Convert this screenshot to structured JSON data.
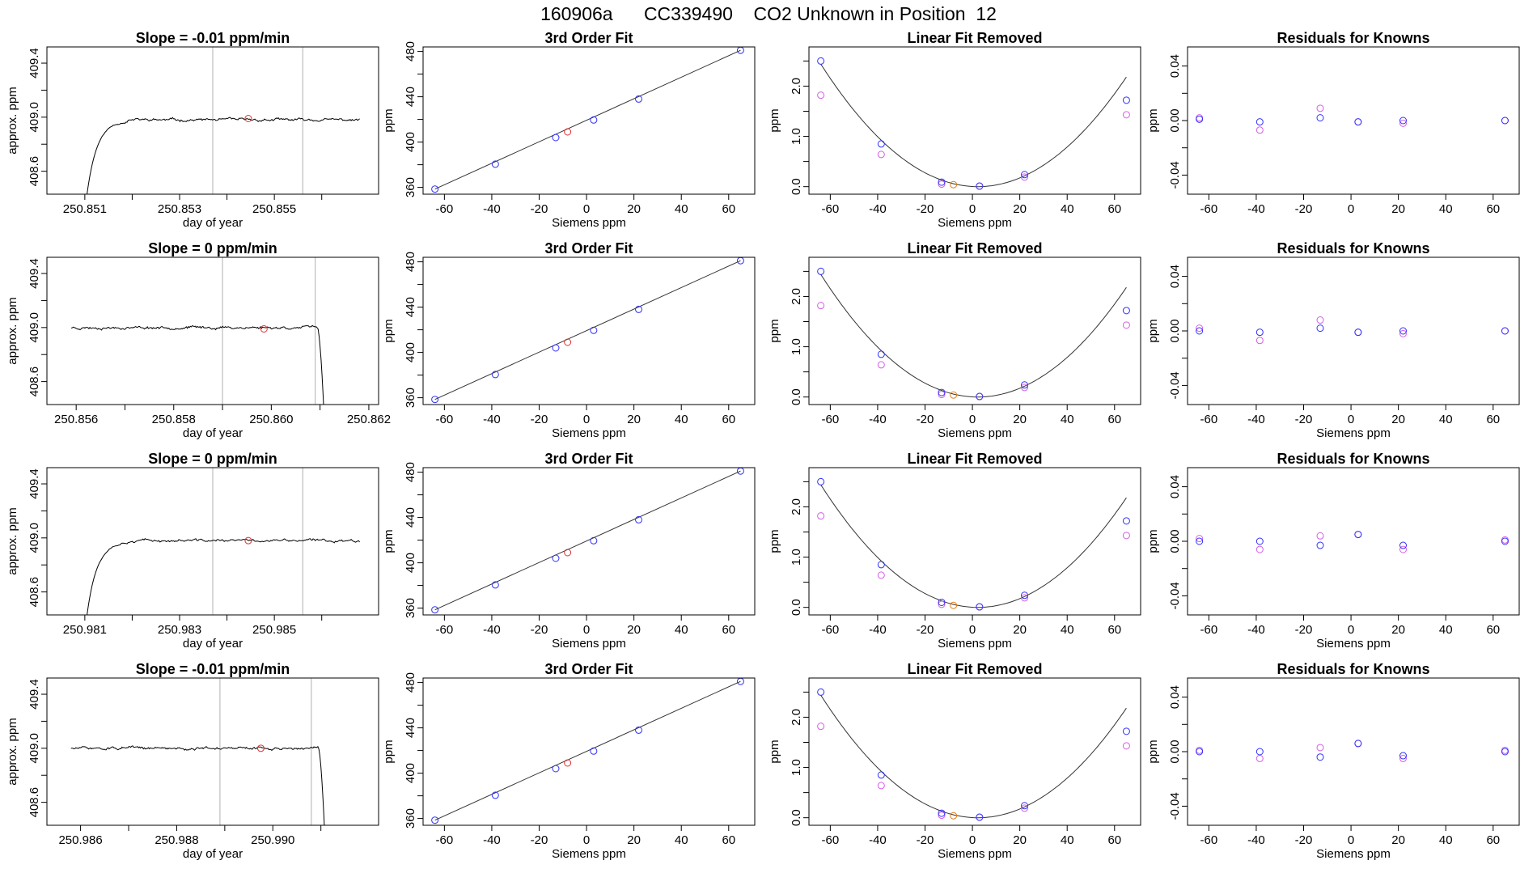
{
  "title": "160906a      CC339490    CO2 Unknown in Position  12",
  "colors": {
    "blue": "#3030ff",
    "magenta": "#d65de8",
    "red": "#e03030",
    "orange": "#e08020",
    "trace": "#000000",
    "vline": "#bdbdbd"
  },
  "chart_data": [
    {
      "type": "line",
      "row": 0,
      "col": 0,
      "title": "Slope =  -0.01  ppm/min",
      "xlabel": "day of year",
      "ylabel": "approx. ppm",
      "xlim": [
        250.8502,
        250.8572
      ],
      "ylim": [
        408.43,
        409.52
      ],
      "xticks": [
        250.851,
        250.853,
        250.855
      ],
      "xtick_labels": [
        "250.851",
        "250.853",
        "250.855"
      ],
      "xminor": [
        250.852,
        250.854,
        250.856
      ],
      "yticks": [
        408.6,
        409.0,
        409.4
      ],
      "ytick_labels": [
        "408.6",
        "409.0",
        "409.4"
      ],
      "yminor": [
        408.8,
        409.2
      ],
      "trace": {
        "x_start": 250.851,
        "x_end": 250.8568,
        "ramp": "up",
        "ramp_end": 250.8515,
        "level": 408.98,
        "seed": 11
      },
      "vlines": [
        250.8537,
        250.8556
      ],
      "marker": {
        "x": 250.85445,
        "y": 408.99
      }
    },
    {
      "type": "scatter",
      "row": 0,
      "col": 1,
      "title": "3rd Order Fit",
      "xlabel": "Siemens ppm",
      "ylabel": "ppm",
      "xlim": [
        -69,
        71
      ],
      "ylim": [
        354,
        484
      ],
      "xticks": [
        -60,
        -40,
        -20,
        0,
        20,
        40,
        60
      ],
      "yticks": [
        360,
        400,
        440,
        480
      ],
      "yminor": [
        380,
        420,
        460
      ],
      "fit_line": [
        [
          -64,
          358.5
        ],
        [
          65,
          481
        ]
      ],
      "knowns": {
        "x": [
          -64,
          -38.5,
          -13,
          3,
          22,
          65
        ],
        "y": [
          358.5,
          380.5,
          404,
          419.5,
          438,
          481
        ]
      },
      "unknown": {
        "x": -8,
        "y": 409
      }
    },
    {
      "type": "scatter",
      "row": 0,
      "col": 2,
      "title": "Linear Fit Removed",
      "xlabel": "Siemens ppm",
      "ylabel": "ppm",
      "xlim": [
        -69,
        71
      ],
      "ylim": [
        -0.15,
        2.78
      ],
      "xticks": [
        -60,
        -40,
        -20,
        0,
        20,
        40,
        60
      ],
      "yticks": [
        0.0,
        1.0,
        2.0
      ],
      "ytick_labels": [
        "0.0",
        "1.0",
        "2.0"
      ],
      "yminor": [
        0.5,
        1.5,
        2.5
      ],
      "curve": {
        "vertex_x": 2.3,
        "a": 0.000555
      },
      "knowns_blue": {
        "x": [
          -64,
          -38.5,
          -13,
          3,
          22,
          65
        ],
        "y": [
          2.5,
          0.85,
          0.09,
          0.01,
          0.24,
          1.72
        ]
      },
      "knowns_magenta": {
        "x": [
          -64,
          -38.5,
          -13,
          3,
          22,
          65
        ],
        "y": [
          1.82,
          0.64,
          0.05,
          0.01,
          0.19,
          1.43
        ]
      },
      "unknown": {
        "x": -8,
        "y": 0.04
      }
    },
    {
      "type": "scatter",
      "row": 0,
      "col": 3,
      "title": "Residuals for Knowns",
      "xlabel": "",
      "ylabel": "ppm",
      "xlim": [
        -69,
        71
      ],
      "ylim": [
        -0.054,
        0.054
      ],
      "xticks": [
        -60,
        -40,
        -20,
        0,
        20,
        40,
        60
      ],
      "yticks": [
        -0.04,
        0.0,
        0.04
      ],
      "ytick_labels": [
        "-0.04",
        "0.00",
        "0.04"
      ],
      "yminor": [
        -0.02,
        0.02
      ],
      "blue": {
        "x": [
          -64,
          -38.5,
          -13,
          3,
          22,
          65
        ],
        "y": [
          0.001,
          -0.001,
          0.002,
          -0.001,
          0.0,
          0.0
        ]
      },
      "magenta": {
        "x": [
          -64,
          -38.5,
          -13,
          3,
          22,
          65
        ],
        "y": [
          0.002,
          -0.007,
          0.009,
          -0.001,
          -0.002,
          0.0
        ]
      }
    },
    {
      "type": "line",
      "row": 1,
      "col": 0,
      "title": "Slope =  0  ppm/min",
      "xlabel": "day of year",
      "ylabel": "approx. ppm",
      "xlim": [
        250.8554,
        250.8622
      ],
      "ylim": [
        408.43,
        409.52
      ],
      "xticks": [
        250.856,
        250.858,
        250.86,
        250.862
      ],
      "xtick_labels": [
        "250.856",
        "250.858",
        "250.860",
        "250.862"
      ],
      "xminor": [
        250.857,
        250.859,
        250.861
      ],
      "yticks": [
        408.6,
        409.0,
        409.4
      ],
      "ytick_labels": [
        "408.6",
        "409.0",
        "409.4"
      ],
      "yminor": [
        408.8,
        409.2
      ],
      "trace": {
        "x_start": 250.8559,
        "x_end": 250.8611,
        "ramp": "down",
        "ramp_start": 250.86095,
        "level": 409.0,
        "seed": 23
      },
      "vlines": [
        250.859,
        250.8609
      ],
      "marker": {
        "x": 250.85985,
        "y": 408.99
      }
    },
    {
      "type": "scatter",
      "row": 1,
      "col": 1,
      "title": "3rd Order Fit",
      "xlabel": "Siemens ppm",
      "ylabel": "ppm",
      "xlim": [
        -69,
        71
      ],
      "ylim": [
        354,
        484
      ],
      "xticks": [
        -60,
        -40,
        -20,
        0,
        20,
        40,
        60
      ],
      "yticks": [
        360,
        400,
        440,
        480
      ],
      "yminor": [
        380,
        420,
        460
      ],
      "fit_line": [
        [
          -64,
          358.5
        ],
        [
          65,
          481
        ]
      ],
      "knowns": {
        "x": [
          -64,
          -38.5,
          -13,
          3,
          22,
          65
        ],
        "y": [
          358.5,
          380.5,
          404,
          419.5,
          438,
          481
        ]
      },
      "unknown": {
        "x": -8,
        "y": 409
      }
    },
    {
      "type": "scatter",
      "row": 1,
      "col": 2,
      "title": "Linear Fit Removed",
      "xlabel": "Siemens ppm",
      "ylabel": "ppm",
      "xlim": [
        -69,
        71
      ],
      "ylim": [
        -0.15,
        2.78
      ],
      "xticks": [
        -60,
        -40,
        -20,
        0,
        20,
        40,
        60
      ],
      "yticks": [
        0.0,
        1.0,
        2.0
      ],
      "ytick_labels": [
        "0.0",
        "1.0",
        "2.0"
      ],
      "yminor": [
        0.5,
        1.5,
        2.5
      ],
      "curve": {
        "vertex_x": 2.3,
        "a": 0.000555
      },
      "knowns_blue": {
        "x": [
          -64,
          -38.5,
          -13,
          3,
          22,
          65
        ],
        "y": [
          2.5,
          0.85,
          0.09,
          0.01,
          0.24,
          1.72
        ]
      },
      "knowns_magenta": {
        "x": [
          -64,
          -38.5,
          -13,
          3,
          22,
          65
        ],
        "y": [
          1.82,
          0.64,
          0.05,
          0.01,
          0.19,
          1.43
        ]
      },
      "unknown": {
        "x": -8,
        "y": 0.04
      }
    },
    {
      "type": "scatter",
      "row": 1,
      "col": 3,
      "title": "Residuals for Knowns",
      "xlabel": "Siemens ppm",
      "ylabel": "ppm",
      "xlim": [
        -69,
        71
      ],
      "ylim": [
        -0.054,
        0.054
      ],
      "xticks": [
        -60,
        -40,
        -20,
        0,
        20,
        40,
        60
      ],
      "yticks": [
        -0.04,
        0.0,
        0.04
      ],
      "ytick_labels": [
        "-0.04",
        "0.00",
        "0.04"
      ],
      "yminor": [
        -0.02,
        0.02
      ],
      "blue": {
        "x": [
          -64,
          -38.5,
          -13,
          3,
          22,
          65
        ],
        "y": [
          0.0,
          -0.001,
          0.002,
          -0.001,
          0.0,
          0.0
        ]
      },
      "magenta": {
        "x": [
          -64,
          -38.5,
          -13,
          3,
          22,
          65
        ],
        "y": [
          0.002,
          -0.007,
          0.008,
          -0.001,
          -0.002,
          0.0
        ]
      }
    },
    {
      "type": "line",
      "row": 2,
      "col": 0,
      "title": "Slope =  0  ppm/min",
      "xlabel": "day of year",
      "ylabel": "approx. ppm",
      "xlim": [
        250.9802,
        250.9872
      ],
      "ylim": [
        408.43,
        409.52
      ],
      "xticks": [
        250.981,
        250.983,
        250.985
      ],
      "xtick_labels": [
        "250.981",
        "250.983",
        "250.985"
      ],
      "xminor": [
        250.982,
        250.984,
        250.986
      ],
      "yticks": [
        408.6,
        409.0,
        409.4
      ],
      "ytick_labels": [
        "408.6",
        "409.0",
        "409.4"
      ],
      "yminor": [
        408.8,
        409.2
      ],
      "trace": {
        "x_start": 250.981,
        "x_end": 250.9868,
        "ramp": "up",
        "ramp_end": 250.9815,
        "level": 408.98,
        "seed": 37
      },
      "vlines": [
        250.9837,
        250.9856
      ],
      "marker": {
        "x": 250.98445,
        "y": 408.98
      }
    },
    {
      "type": "scatter",
      "row": 2,
      "col": 1,
      "title": "3rd Order Fit",
      "xlabel": "Siemens ppm",
      "ylabel": "ppm",
      "xlim": [
        -69,
        71
      ],
      "ylim": [
        354,
        484
      ],
      "xticks": [
        -60,
        -40,
        -20,
        0,
        20,
        40,
        60
      ],
      "yticks": [
        360,
        400,
        440,
        480
      ],
      "yminor": [
        380,
        420,
        460
      ],
      "fit_line": [
        [
          -64,
          358.5
        ],
        [
          65,
          481
        ]
      ],
      "knowns": {
        "x": [
          -64,
          -38.5,
          -13,
          3,
          22,
          65
        ],
        "y": [
          358.5,
          380.5,
          404,
          419.5,
          438,
          481
        ]
      },
      "unknown": {
        "x": -8,
        "y": 409
      }
    },
    {
      "type": "scatter",
      "row": 2,
      "col": 2,
      "title": "Linear Fit Removed",
      "xlabel": "Siemens ppm",
      "ylabel": "ppm",
      "xlim": [
        -69,
        71
      ],
      "ylim": [
        -0.15,
        2.78
      ],
      "xticks": [
        -60,
        -40,
        -20,
        0,
        20,
        40,
        60
      ],
      "yticks": [
        0.0,
        1.0,
        2.0
      ],
      "ytick_labels": [
        "0.0",
        "1.0",
        "2.0"
      ],
      "yminor": [
        0.5,
        1.5,
        2.5
      ],
      "curve": {
        "vertex_x": 2.3,
        "a": 0.000555
      },
      "knowns_blue": {
        "x": [
          -64,
          -38.5,
          -13,
          3,
          22,
          65
        ],
        "y": [
          2.5,
          0.85,
          0.1,
          0.01,
          0.24,
          1.72
        ]
      },
      "knowns_magenta": {
        "x": [
          -64,
          -38.5,
          -13,
          3,
          22,
          65
        ],
        "y": [
          1.82,
          0.64,
          0.06,
          0.01,
          0.19,
          1.43
        ]
      },
      "unknown": {
        "x": -8,
        "y": 0.04
      }
    },
    {
      "type": "scatter",
      "row": 2,
      "col": 3,
      "title": "Residuals for Knowns",
      "xlabel": "Siemens ppm",
      "ylabel": "ppm",
      "xlim": [
        -69,
        71
      ],
      "ylim": [
        -0.054,
        0.054
      ],
      "xticks": [
        -60,
        -40,
        -20,
        0,
        20,
        40,
        60
      ],
      "yticks": [
        -0.04,
        0.0,
        0.04
      ],
      "ytick_labels": [
        "-0.04",
        "0.00",
        "0.04"
      ],
      "yminor": [
        -0.02,
        0.02
      ],
      "blue": {
        "x": [
          -64,
          -38.5,
          -13,
          3,
          22,
          65
        ],
        "y": [
          0.0,
          0.0,
          -0.003,
          0.005,
          -0.003,
          0.0
        ]
      },
      "magenta": {
        "x": [
          -64,
          -38.5,
          -13,
          3,
          22,
          65
        ],
        "y": [
          0.002,
          -0.006,
          0.004,
          0.005,
          -0.006,
          0.001
        ]
      }
    },
    {
      "type": "line",
      "row": 3,
      "col": 0,
      "title": "Slope =  -0.01  ppm/min",
      "xlabel": "day of year",
      "ylabel": "approx. ppm",
      "xlim": [
        250.9853,
        250.9922
      ],
      "ylim": [
        408.43,
        409.52
      ],
      "xticks": [
        250.986,
        250.988,
        250.99
      ],
      "xtick_labels": [
        "250.986",
        "250.988",
        "250.990"
      ],
      "xminor": [
        250.987,
        250.989,
        250.991
      ],
      "yticks": [
        408.6,
        409.0,
        409.4
      ],
      "ytick_labels": [
        "408.6",
        "409.0",
        "409.4"
      ],
      "yminor": [
        408.8,
        409.2
      ],
      "trace": {
        "x_start": 250.9858,
        "x_end": 250.9911,
        "ramp": "down",
        "ramp_start": 250.99095,
        "level": 409.0,
        "seed": 51
      },
      "vlines": [
        250.9889,
        250.9908
      ],
      "marker": {
        "x": 250.98975,
        "y": 409.0
      }
    },
    {
      "type": "scatter",
      "row": 3,
      "col": 1,
      "title": "3rd Order Fit",
      "xlabel": "Siemens ppm",
      "ylabel": "ppm",
      "xlim": [
        -69,
        71
      ],
      "ylim": [
        354,
        484
      ],
      "xticks": [
        -60,
        -40,
        -20,
        0,
        20,
        40,
        60
      ],
      "yticks": [
        360,
        400,
        440,
        480
      ],
      "yminor": [
        380,
        420,
        460
      ],
      "fit_line": [
        [
          -64,
          358.5
        ],
        [
          65,
          481
        ]
      ],
      "knowns": {
        "x": [
          -64,
          -38.5,
          -13,
          3,
          22,
          65
        ],
        "y": [
          358.5,
          380.5,
          404,
          419.5,
          438,
          481
        ]
      },
      "unknown": {
        "x": -8,
        "y": 409
      }
    },
    {
      "type": "scatter",
      "row": 3,
      "col": 2,
      "title": "Linear Fit Removed",
      "xlabel": "Siemens ppm",
      "ylabel": "ppm",
      "xlim": [
        -69,
        71
      ],
      "ylim": [
        -0.15,
        2.78
      ],
      "xticks": [
        -60,
        -40,
        -20,
        0,
        20,
        40,
        60
      ],
      "yticks": [
        0.0,
        1.0,
        2.0
      ],
      "ytick_labels": [
        "0.0",
        "1.0",
        "2.0"
      ],
      "yminor": [
        0.5,
        1.5,
        2.5
      ],
      "curve": {
        "vertex_x": 2.3,
        "a": 0.000555
      },
      "knowns_blue": {
        "x": [
          -64,
          -38.5,
          -13,
          3,
          22,
          65
        ],
        "y": [
          2.5,
          0.85,
          0.09,
          0.01,
          0.24,
          1.72
        ]
      },
      "knowns_magenta": {
        "x": [
          -64,
          -38.5,
          -13,
          3,
          22,
          65
        ],
        "y": [
          1.82,
          0.64,
          0.05,
          0.01,
          0.19,
          1.43
        ]
      },
      "unknown": {
        "x": -8,
        "y": 0.04
      }
    },
    {
      "type": "scatter",
      "row": 3,
      "col": 3,
      "title": "Residuals for Knowns",
      "xlabel": "Siemens ppm",
      "ylabel": "ppm",
      "xlim": [
        -69,
        71
      ],
      "ylim": [
        -0.054,
        0.054
      ],
      "xticks": [
        -60,
        -40,
        -20,
        0,
        20,
        40,
        60
      ],
      "yticks": [
        -0.04,
        0.0,
        0.04
      ],
      "ytick_labels": [
        "-0.04",
        "0.00",
        "0.04"
      ],
      "yminor": [
        -0.02,
        0.02
      ],
      "blue": {
        "x": [
          -64,
          -38.5,
          -13,
          3,
          22,
          65
        ],
        "y": [
          0.0,
          0.0,
          -0.004,
          0.006,
          -0.003,
          0.0
        ]
      },
      "magenta": {
        "x": [
          -64,
          -38.5,
          -13,
          3,
          22,
          65
        ],
        "y": [
          0.001,
          -0.005,
          0.003,
          0.006,
          -0.005,
          0.001
        ]
      }
    }
  ]
}
